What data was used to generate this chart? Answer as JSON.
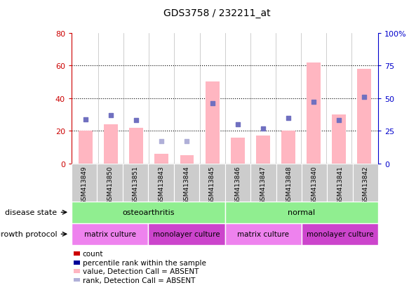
{
  "title": "GDS3758 / 232211_at",
  "samples": [
    "GSM413849",
    "GSM413850",
    "GSM413851",
    "GSM413843",
    "GSM413844",
    "GSM413845",
    "GSM413846",
    "GSM413847",
    "GSM413848",
    "GSM413840",
    "GSM413841",
    "GSM413842"
  ],
  "bar_values_pink": [
    20,
    24,
    22,
    6,
    5,
    50,
    16,
    17,
    20,
    62,
    30,
    58
  ],
  "scatter_blue": [
    34,
    37,
    33,
    null,
    null,
    46,
    30,
    27,
    35,
    47,
    33,
    51
  ],
  "scatter_light_blue": [
    null,
    null,
    null,
    17,
    17,
    null,
    null,
    null,
    null,
    null,
    null,
    null
  ],
  "left_ylim": [
    0,
    80
  ],
  "right_ylim": [
    0,
    100
  ],
  "left_yticks": [
    0,
    20,
    40,
    60,
    80
  ],
  "right_yticks": [
    0,
    25,
    50,
    75,
    100
  ],
  "right_yticklabels": [
    "0",
    "25",
    "50",
    "75",
    "100%"
  ],
  "left_yticklabels": [
    "0",
    "20",
    "40",
    "60",
    "80"
  ],
  "disease_state_groups": [
    {
      "label": "osteoarthritis",
      "start": 0,
      "end": 6,
      "color": "#90EE90"
    },
    {
      "label": "normal",
      "start": 6,
      "end": 12,
      "color": "#90EE90"
    }
  ],
  "growth_protocol_groups": [
    {
      "label": "matrix culture",
      "start": 0,
      "end": 3,
      "color": "#EE82EE"
    },
    {
      "label": "monolayer culture",
      "start": 3,
      "end": 6,
      "color": "#CC44CC"
    },
    {
      "label": "matrix culture",
      "start": 6,
      "end": 9,
      "color": "#EE82EE"
    },
    {
      "label": "monolayer culture",
      "start": 9,
      "end": 12,
      "color": "#CC44CC"
    }
  ],
  "bar_color_pink": "#FFB6C1",
  "scatter_blue_color": "#7070C0",
  "scatter_light_blue_color": "#B0B0D8",
  "left_axis_color": "#CC0000",
  "right_axis_color": "#0000CC",
  "label_row1": "disease state",
  "label_row2": "growth protocol",
  "legend_items": [
    {
      "label": "count",
      "color": "#CC0000"
    },
    {
      "label": "percentile rank within the sample",
      "color": "#000099"
    },
    {
      "label": "value, Detection Call = ABSENT",
      "color": "#FFB6C1"
    },
    {
      "label": "rank, Detection Call = ABSENT",
      "color": "#B0B0D8"
    }
  ]
}
